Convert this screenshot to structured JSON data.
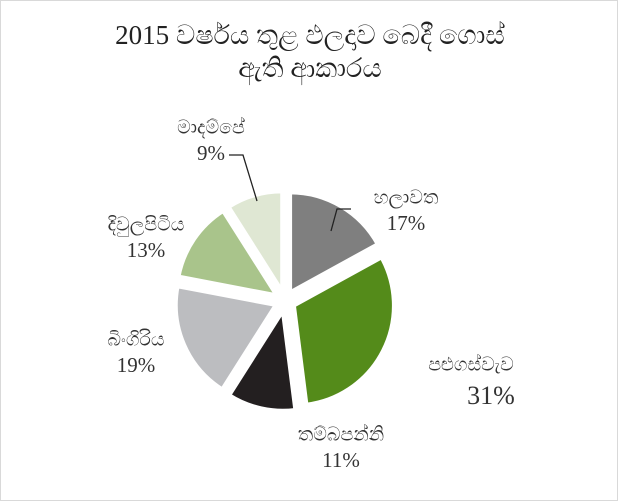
{
  "chart_data": {
    "type": "pie",
    "title": "2015 වර්ෂය තුළ ඵලදාව බෙදී ගොස් ඇති ආකාරය",
    "categories": [
      "හලාවත",
      "පළුගස්වැව",
      "තම්බපන්නි",
      "බිංගිරිය",
      "දිවුලපිටිය",
      "මාදම්පේ"
    ],
    "values": [
      17,
      31,
      11,
      19,
      13,
      9
    ],
    "value_labels": [
      "17%",
      "31%",
      "11%",
      "19%",
      "13%",
      "9%"
    ],
    "colors": [
      "#7f7f7f",
      "#548b1a",
      "#231f20",
      "#bcbdc0",
      "#a9c48b",
      "#dfe7d3"
    ]
  }
}
